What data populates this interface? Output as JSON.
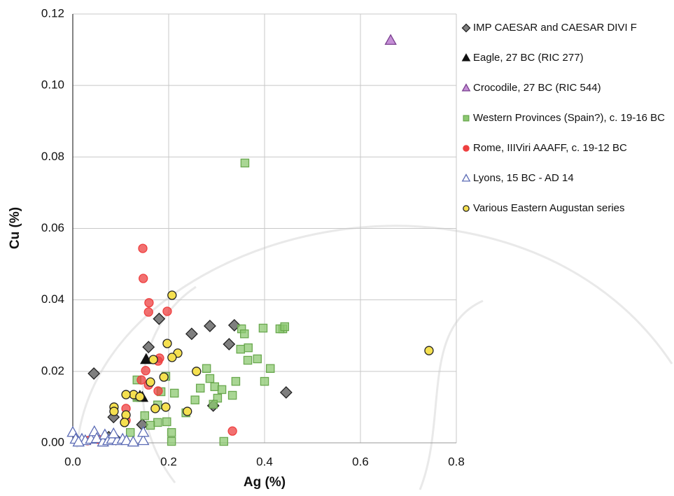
{
  "chart_data": {
    "type": "scatter",
    "xlabel": "Ag (%)",
    "ylabel": "Cu (%)",
    "xlim": [
      0,
      0.8
    ],
    "ylim": [
      0,
      0.12
    ],
    "xticks": [
      {
        "value": 0,
        "label": "0.0"
      },
      0.2,
      0.4,
      0.6,
      0.8
    ],
    "yticks": [
      {
        "value": 0,
        "label": "0.00"
      },
      0.02,
      0.04,
      0.06,
      0.08,
      {
        "value": 0.1,
        "label": "0.10"
      },
      0.12
    ],
    "grid": true,
    "legend": "right",
    "series": [
      {
        "name": "IMP CAESAR and CAESAR DIVI F",
        "marker": "diamond",
        "color": "#7f7f7f",
        "edgecolor": "#222222",
        "alpha": 1,
        "x": [
          0.044,
          0.085,
          0.158,
          0.18,
          0.248,
          0.286,
          0.337,
          0.326,
          0.445,
          0.145,
          0.293,
          0.075,
          0.09
        ],
        "values": [
          0.0194,
          0.0072,
          0.0268,
          0.0347,
          0.0305,
          0.0327,
          0.0329,
          0.0276,
          0.0141,
          0.0051,
          0.0104,
          0.0016,
          0.001
        ]
      },
      {
        "name": "Eagle, 27 BC (RIC 277)",
        "marker": "triangle",
        "color": "#111111",
        "edgecolor": "#111111",
        "alpha": 1,
        "x": [
          0.153,
          0.145,
          0.14
        ],
        "values": [
          0.0233,
          0.0127,
          0.013
        ]
      },
      {
        "name": "Crocodile, 27 BC (RIC 544)",
        "marker": "triangle",
        "color": "#c58fd6",
        "edgecolor": "#7a3f8f",
        "alpha": 1,
        "x": [
          0.663
        ],
        "values": [
          0.1126
        ]
      },
      {
        "name": "Western Provinces (Spain?), c. 19-16 BC",
        "marker": "square",
        "color": "#8cc870",
        "edgecolor": "#6aa84f",
        "alpha": 0.75,
        "x": [
          0.359,
          0.352,
          0.358,
          0.366,
          0.35,
          0.365,
          0.385,
          0.438,
          0.432,
          0.442,
          0.397,
          0.412,
          0.4,
          0.34,
          0.333,
          0.279,
          0.286,
          0.266,
          0.296,
          0.311,
          0.302,
          0.255,
          0.293,
          0.212,
          0.177,
          0.134,
          0.134,
          0.15,
          0.177,
          0.196,
          0.206,
          0.206,
          0.162,
          0.12,
          0.315,
          0.194,
          0.236,
          0.184
        ],
        "values": [
          0.0783,
          0.0319,
          0.0305,
          0.0266,
          0.0262,
          0.0231,
          0.0235,
          0.0319,
          0.0319,
          0.0325,
          0.0321,
          0.0208,
          0.0172,
          0.0172,
          0.0133,
          0.0208,
          0.018,
          0.0153,
          0.0157,
          0.0149,
          0.0125,
          0.012,
          0.0108,
          0.0139,
          0.0106,
          0.0176,
          0.0127,
          0.0076,
          0.0057,
          0.0059,
          0.0029,
          0.0004,
          0.0049,
          0.0029,
          0.0004,
          0.0186,
          0.0084,
          0.0143
        ]
      },
      {
        "name": "Rome, IIIViri AAAFF, c. 19-12 BC",
        "marker": "circle",
        "color": "#ee4040",
        "edgecolor": "#ee4040",
        "alpha": 0.75,
        "x": [
          0.146,
          0.147,
          0.159,
          0.158,
          0.197,
          0.152,
          0.143,
          0.178,
          0.181,
          0.178,
          0.158,
          0.111,
          0.111,
          0.333,
          0.067,
          0.053,
          0.031
        ],
        "values": [
          0.0544,
          0.046,
          0.0392,
          0.0366,
          0.0368,
          0.0202,
          0.0176,
          0.0229,
          0.0237,
          0.0145,
          0.0162,
          0.0096,
          0.0063,
          0.0033,
          0.001,
          0.001,
          0.0006
        ]
      },
      {
        "name": "Lyons, 15 BC - AD 14",
        "marker": "triangle-open",
        "color": "#ffffff",
        "edgecolor": "#5b6bb5",
        "alpha": 1,
        "x": [
          0.0,
          0.006,
          0.019,
          0.026,
          0.038,
          0.045,
          0.05,
          0.063,
          0.067,
          0.074,
          0.082,
          0.093,
          0.104,
          0.112,
          0.126,
          0.147,
          0.147,
          0.085,
          0.012
        ],
        "values": [
          0.0029,
          0.001,
          0.001,
          0.0006,
          0.001,
          0.0031,
          0.0012,
          0.0002,
          0.0022,
          0.0006,
          0.001,
          0.0006,
          0.001,
          0.0006,
          0.0002,
          0.0006,
          0.0029,
          0.0025,
          0.0002
        ]
      },
      {
        "name": "Various Eastern Augustan series",
        "marker": "circle",
        "color": "#f5e050",
        "edgecolor": "#222222",
        "alpha": 1,
        "x": [
          0.207,
          0.197,
          0.219,
          0.207,
          0.168,
          0.258,
          0.19,
          0.162,
          0.127,
          0.111,
          0.14,
          0.086,
          0.086,
          0.172,
          0.194,
          0.239,
          0.111,
          0.108,
          0.743
        ],
        "values": [
          0.0413,
          0.0278,
          0.0251,
          0.0239,
          0.0233,
          0.02,
          0.0184,
          0.017,
          0.0135,
          0.0135,
          0.0129,
          0.01,
          0.0088,
          0.0096,
          0.01,
          0.0088,
          0.0078,
          0.0057,
          0.0258
        ]
      }
    ]
  }
}
